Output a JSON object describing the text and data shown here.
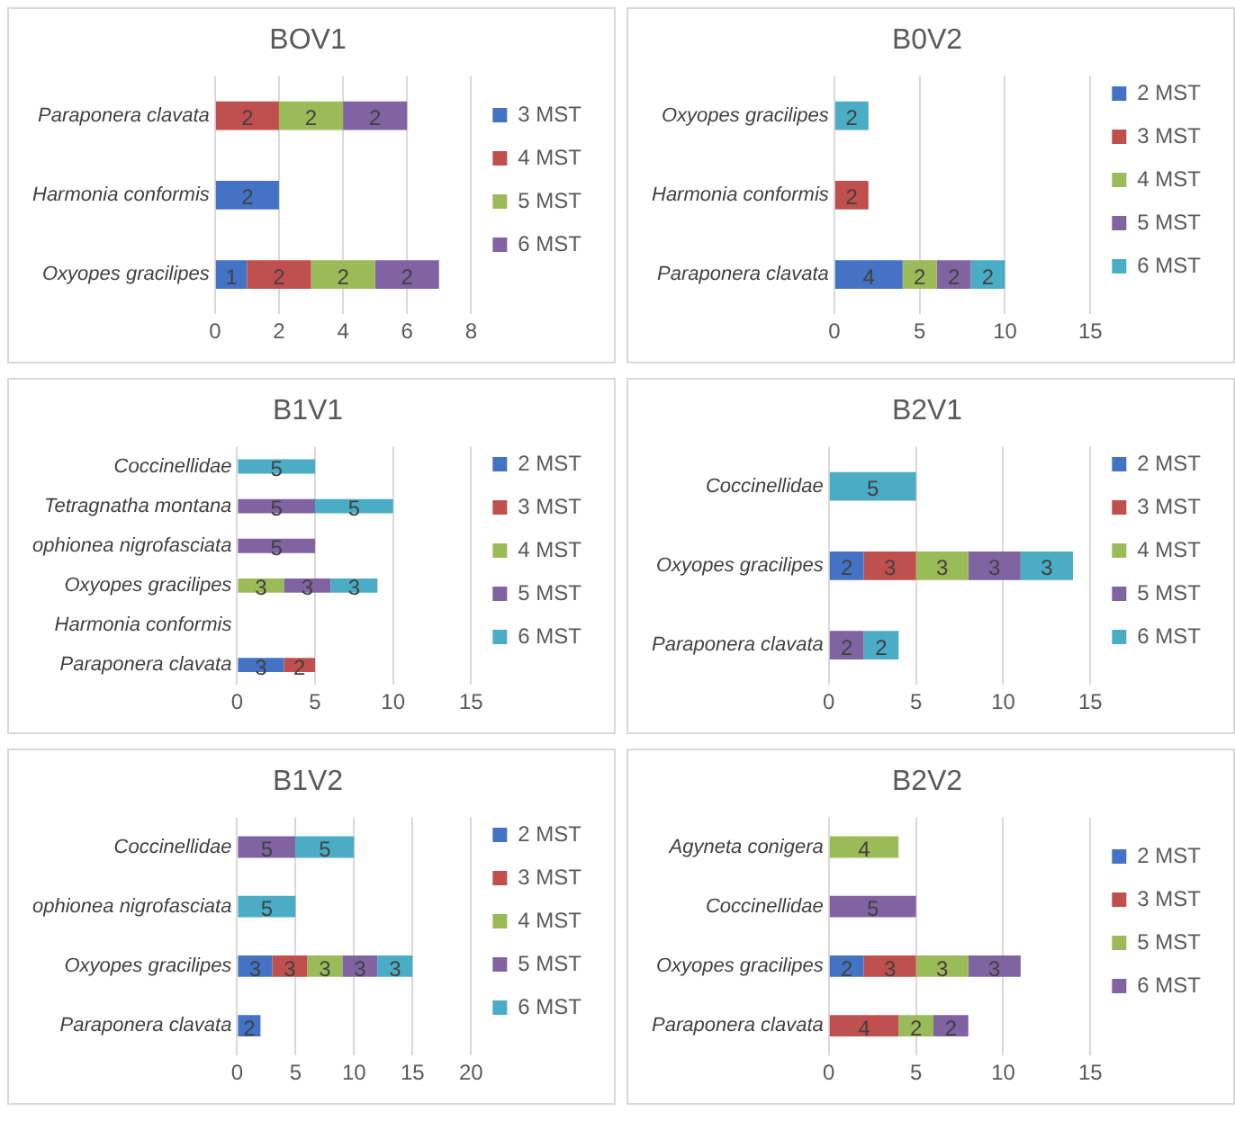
{
  "chart_data": [
    {
      "type": "bar",
      "orientation": "horizontal",
      "stacked": true,
      "title": "BOV1",
      "categories": [
        "Paraponera clavata",
        "Harmonia conformis",
        "Oxyopes gracilipes"
      ],
      "series": [
        {
          "name": "3 MST",
          "color": "#4472c4",
          "values": [
            null,
            2,
            1
          ]
        },
        {
          "name": "4 MST",
          "color": "#c0504d",
          "values": [
            2,
            null,
            2
          ]
        },
        {
          "name": "5 MST",
          "color": "#9bbb59",
          "values": [
            2,
            null,
            2
          ]
        },
        {
          "name": "6 MST",
          "color": "#8064a2",
          "values": [
            2,
            null,
            2
          ]
        }
      ],
      "xlim": [
        0,
        8
      ],
      "xticks": [
        0,
        2,
        4,
        6,
        8
      ],
      "grid": "x",
      "legend": "right",
      "data_labels": true
    },
    {
      "type": "bar",
      "orientation": "horizontal",
      "stacked": true,
      "title": "B0V2",
      "categories": [
        "Oxyopes gracilipes",
        "Harmonia conformis",
        "Paraponera clavata"
      ],
      "series": [
        {
          "name": "2 MST",
          "color": "#4472c4",
          "values": [
            null,
            null,
            4
          ]
        },
        {
          "name": "3 MST",
          "color": "#c0504d",
          "values": [
            null,
            2,
            null
          ]
        },
        {
          "name": "4 MST",
          "color": "#9bbb59",
          "values": [
            null,
            null,
            2
          ]
        },
        {
          "name": "5 MST",
          "color": "#8064a2",
          "values": [
            null,
            null,
            2
          ]
        },
        {
          "name": "6 MST",
          "color": "#4bacc6",
          "values": [
            2,
            null,
            2
          ]
        }
      ],
      "xlim": [
        0,
        15
      ],
      "xticks": [
        0,
        5,
        10,
        15
      ],
      "grid": "x",
      "legend": "right",
      "data_labels": true
    },
    {
      "type": "bar",
      "orientation": "horizontal",
      "stacked": true,
      "title": "B1V1",
      "categories": [
        "Coccinellidae",
        "Tetragnatha montana",
        "ophionea nigrofasciata",
        "Oxyopes gracilipes",
        "Harmonia conformis",
        "Paraponera clavata"
      ],
      "series": [
        {
          "name": "2 MST",
          "color": "#4472c4",
          "values": [
            null,
            null,
            null,
            null,
            null,
            3
          ]
        },
        {
          "name": "3 MST",
          "color": "#c0504d",
          "values": [
            null,
            null,
            null,
            null,
            null,
            2
          ]
        },
        {
          "name": "4 MST",
          "color": "#9bbb59",
          "values": [
            null,
            null,
            null,
            3,
            null,
            null
          ]
        },
        {
          "name": "5 MST",
          "color": "#8064a2",
          "values": [
            null,
            5,
            5,
            3,
            null,
            null
          ]
        },
        {
          "name": "6 MST",
          "color": "#4bacc6",
          "values": [
            5,
            5,
            null,
            3,
            null,
            null
          ]
        }
      ],
      "xlim": [
        0,
        15
      ],
      "xticks": [
        0,
        5,
        10,
        15
      ],
      "grid": "x",
      "legend": "right",
      "data_labels": true
    },
    {
      "type": "bar",
      "orientation": "horizontal",
      "stacked": true,
      "title": "B2V1",
      "categories": [
        "Coccinellidae",
        "Oxyopes gracilipes",
        "Paraponera clavata"
      ],
      "series": [
        {
          "name": "2 MST",
          "color": "#4472c4",
          "values": [
            null,
            2,
            null
          ]
        },
        {
          "name": "3 MST",
          "color": "#c0504d",
          "values": [
            null,
            3,
            null
          ]
        },
        {
          "name": "4 MST",
          "color": "#9bbb59",
          "values": [
            null,
            3,
            null
          ]
        },
        {
          "name": "5 MST",
          "color": "#8064a2",
          "values": [
            null,
            3,
            2
          ]
        },
        {
          "name": "6 MST",
          "color": "#4bacc6",
          "values": [
            5,
            3,
            2
          ]
        }
      ],
      "xlim": [
        0,
        15
      ],
      "xticks": [
        0,
        5,
        10,
        15
      ],
      "grid": "x",
      "legend": "right",
      "data_labels": true
    },
    {
      "type": "bar",
      "orientation": "horizontal",
      "stacked": true,
      "title": "B1V2",
      "categories": [
        "Coccinellidae",
        "ophionea nigrofasciata",
        "Oxyopes gracilipes",
        "Paraponera clavata"
      ],
      "series": [
        {
          "name": "2 MST",
          "color": "#4472c4",
          "values": [
            null,
            null,
            3,
            2
          ]
        },
        {
          "name": "3 MST",
          "color": "#c0504d",
          "values": [
            null,
            null,
            3,
            null
          ]
        },
        {
          "name": "4 MST",
          "color": "#9bbb59",
          "values": [
            null,
            null,
            3,
            null
          ]
        },
        {
          "name": "5 MST",
          "color": "#8064a2",
          "values": [
            5,
            null,
            3,
            null
          ]
        },
        {
          "name": "6 MST",
          "color": "#4bacc6",
          "values": [
            5,
            5,
            3,
            null
          ]
        }
      ],
      "xlim": [
        0,
        20
      ],
      "xticks": [
        0,
        5,
        10,
        15,
        20
      ],
      "grid": "x",
      "legend": "right",
      "data_labels": true
    },
    {
      "type": "bar",
      "orientation": "horizontal",
      "stacked": true,
      "title": "B2V2",
      "categories": [
        "Agyneta conigera",
        "Coccinellidae",
        "Oxyopes gracilipes",
        "Paraponera clavata"
      ],
      "series": [
        {
          "name": "2 MST",
          "color": "#4472c4",
          "values": [
            null,
            null,
            2,
            null
          ]
        },
        {
          "name": "3 MST",
          "color": "#c0504d",
          "values": [
            null,
            null,
            3,
            4
          ]
        },
        {
          "name": "5 MST",
          "color": "#9bbb59",
          "values": [
            4,
            null,
            3,
            2
          ]
        },
        {
          "name": "6 MST",
          "color": "#8064a2",
          "values": [
            null,
            5,
            3,
            2
          ]
        }
      ],
      "xlim": [
        0,
        15
      ],
      "xticks": [
        0,
        5,
        10,
        15
      ],
      "grid": "x",
      "legend": "right",
      "data_labels": true
    }
  ]
}
